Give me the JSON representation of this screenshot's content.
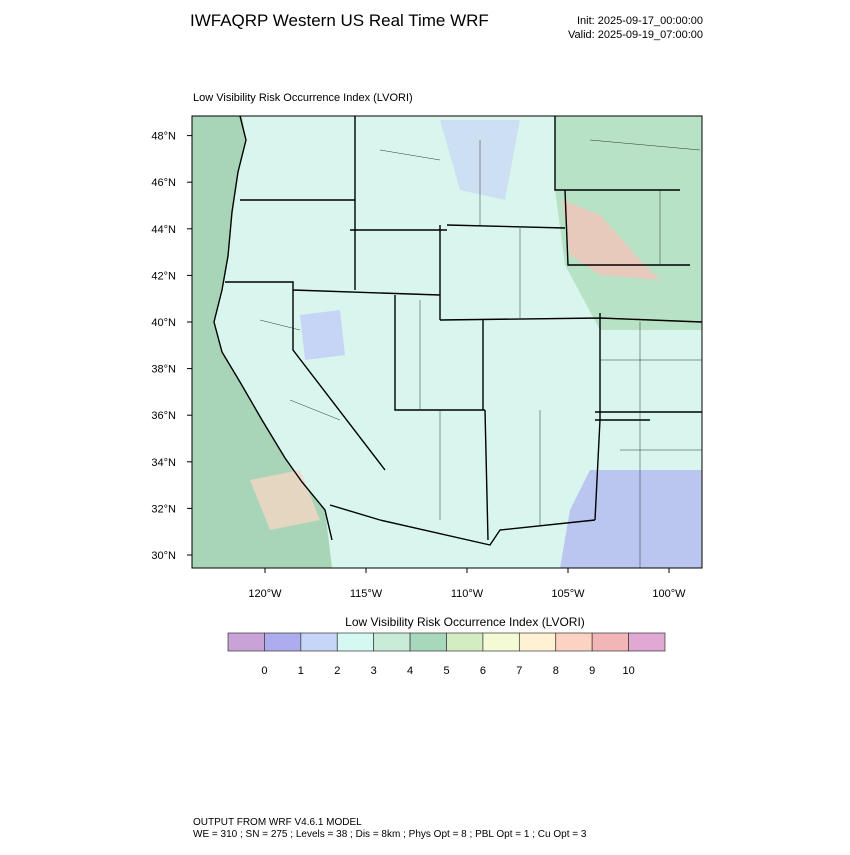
{
  "header": {
    "title": "IWFAQRP Western US Real Time WRF",
    "init": "Init: 2025-09-17_00:00:00",
    "valid": "Valid: 2025-09-19_07:00:00"
  },
  "map": {
    "title": "Low Visibility Risk Occurrence Index   (LVORI)",
    "lat_ticks": [
      {
        "value": 48,
        "label": "48°N"
      },
      {
        "value": 46,
        "label": "46°N"
      },
      {
        "value": 44,
        "label": "44°N"
      },
      {
        "value": 42,
        "label": "42°N"
      },
      {
        "value": 40,
        "label": "40°N"
      },
      {
        "value": 38,
        "label": "38°N"
      },
      {
        "value": 36,
        "label": "36°N"
      },
      {
        "value": 34,
        "label": "34°N"
      },
      {
        "value": 32,
        "label": "32°N"
      },
      {
        "value": 30,
        "label": "30°N"
      }
    ],
    "lon_ticks": [
      {
        "value": -120,
        "label": "120°W"
      },
      {
        "value": -115,
        "label": "115°W"
      },
      {
        "value": -110,
        "label": "110°W"
      },
      {
        "value": -105,
        "label": "105°W"
      },
      {
        "value": -100,
        "label": "100°W"
      }
    ]
  },
  "colorbar": {
    "title": "Low Visibility Risk Occurrence Index  (LVORI)",
    "ticks": [
      0,
      1,
      2,
      3,
      4,
      5,
      6,
      7,
      8,
      9,
      10
    ],
    "colors": [
      "#c9a2d8",
      "#acacee",
      "#c6d6f8",
      "#d6f8f2",
      "#c8ecd8",
      "#a8d8bc",
      "#d4ecc2",
      "#f4fad6",
      "#fff2d4",
      "#fcd2c2",
      "#f2b6b6",
      "#e0a8d2"
    ]
  },
  "footer": {
    "line1": "OUTPUT FROM WRF V4.6.1 MODEL",
    "line2": "WE = 310 ; SN = 275 ; Levels = 38 ; Dis = 8km ; Phys Opt = 8 ; PBL Opt = 1 ; Cu Opt = 3"
  }
}
